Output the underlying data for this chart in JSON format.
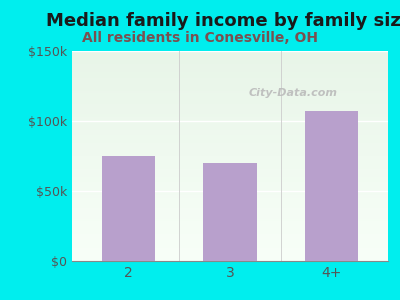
{
  "title": "Median family income by family size",
  "subtitle": "All residents in Conesville, OH",
  "categories": [
    "2",
    "3",
    "4+"
  ],
  "values": [
    75000,
    70000,
    107000
  ],
  "bar_color": "#b8a0cc",
  "background_color": "#00eeee",
  "plot_bg_top": "#e8f5e8",
  "plot_bg_bottom": "#f8fff8",
  "title_color": "#1a1a1a",
  "subtitle_color": "#7a5050",
  "tick_color": "#555555",
  "ylim": [
    0,
    150000
  ],
  "yticks": [
    0,
    50000,
    100000,
    150000
  ],
  "ytick_labels": [
    "$0",
    "$50k",
    "$100k",
    "$150k"
  ],
  "title_fontsize": 13,
  "subtitle_fontsize": 10,
  "watermark": "City-Data.com"
}
